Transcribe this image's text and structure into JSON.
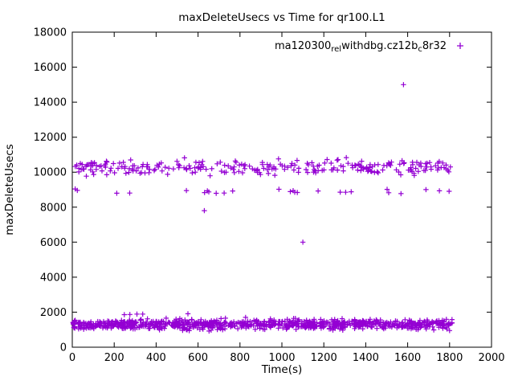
{
  "colors": {
    "series": "#9400d3",
    "axis": "#000000",
    "background": "#ffffff"
  },
  "legend": {
    "segments": [
      {
        "text": "ma120300"
      },
      {
        "text": "rel",
        "sub": true
      },
      {
        "text": "withdbg.cz12b",
        "sub": false
      },
      {
        "text": "c",
        "sub": true
      },
      {
        "text": "8r32",
        "sub": false
      }
    ],
    "marker": "plus"
  },
  "chart_data": {
    "type": "scatter",
    "title": "maxDeleteUsecs vs Time for qr100.L1",
    "xlabel": "Time(s)",
    "ylabel": "maxDeleteUsecs",
    "xlim": [
      0,
      2000
    ],
    "ylim": [
      0,
      18000
    ],
    "xticks": [
      0,
      200,
      400,
      600,
      800,
      1000,
      1200,
      1400,
      1600,
      1800,
      2000
    ],
    "yticks": [
      0,
      2000,
      4000,
      6000,
      8000,
      10000,
      12000,
      14000,
      16000,
      18000
    ],
    "grid": false,
    "legend_position": "top-right-inside",
    "series": [
      {
        "name": "ma120300_rel_withdbg.cz12b_c8r32",
        "marker": "plus",
        "color": "#9400d3"
      }
    ],
    "bands": [
      {
        "name": "low-band",
        "x_range": [
          3,
          1812
        ],
        "y_center": 1320,
        "y_sd": 280,
        "count": 880
      },
      {
        "name": "low-spikes",
        "x_range": [
          230,
          680
        ],
        "y_center": 1890,
        "y_sd": 60,
        "count": 5
      },
      {
        "name": "high-band",
        "x_range": [
          5,
          1810
        ],
        "y_center": 10280,
        "y_sd": 400,
        "count": 265
      },
      {
        "name": "mid-band",
        "x_range": [
          10,
          1800
        ],
        "y_center": 8920,
        "y_sd": 150,
        "count": 26
      }
    ],
    "outliers": [
      [
        630,
        7800
      ],
      [
        1100,
        6000
      ],
      [
        1580,
        15000
      ]
    ],
    "seed": 1337
  }
}
